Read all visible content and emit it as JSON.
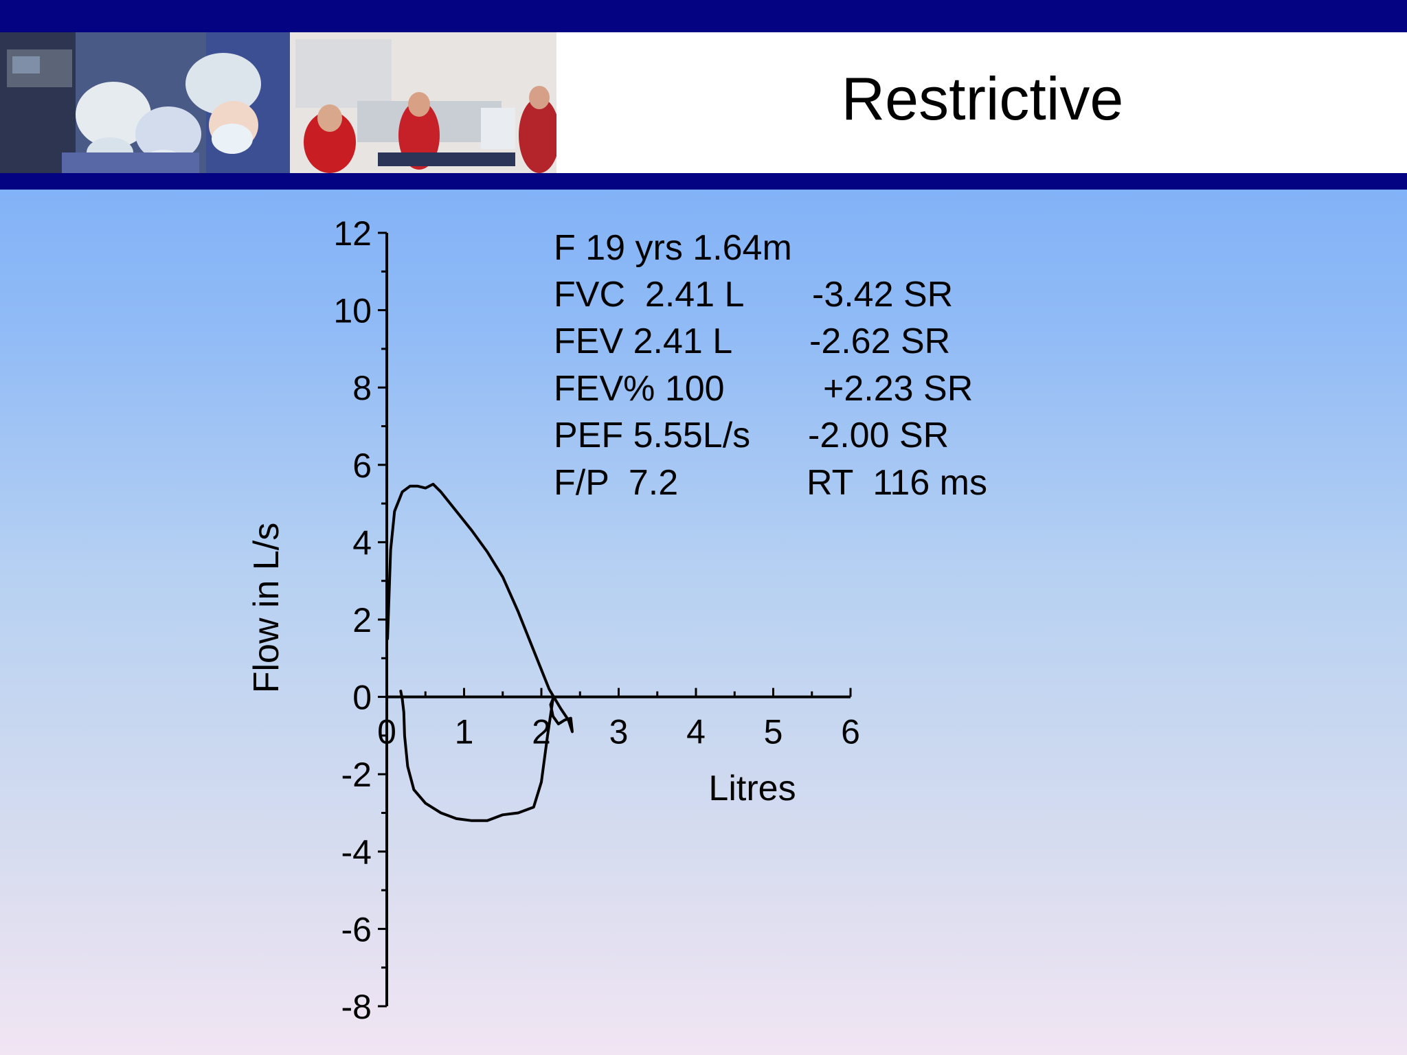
{
  "slide": {
    "title": "Restrictive"
  },
  "header_images": [
    {
      "icon": "surgeons-photo"
    },
    {
      "icon": "emergency-stretcher-photo"
    }
  ],
  "colors": {
    "bar": "#040482",
    "curve": "#000000"
  },
  "info": {
    "patient": "F 19 yrs 1.64m",
    "rows": [
      {
        "label": "FVC  2.41 L",
        "value": "-3.42 SR"
      },
      {
        "label": "FEV 2.41 L",
        "value": "-2.62 SR"
      },
      {
        "label": "FEV% 100",
        "value": "+2.23 SR"
      },
      {
        "label": "PEF 5.55L/s",
        "value": "-2.00 SR"
      },
      {
        "label": "F/P  7.2",
        "value": "RT  116 ms"
      }
    ]
  },
  "chart_data": {
    "type": "line",
    "title": "",
    "xlabel": "Litres",
    "ylabel": "Flow in L/s",
    "xlim": [
      0,
      6
    ],
    "ylim": [
      -8,
      12
    ],
    "xticks": [
      "0",
      "1",
      "2",
      "3",
      "4",
      "5",
      "6"
    ],
    "yticks": [
      "12",
      "10",
      "8",
      "6",
      "4",
      "2",
      "0",
      "-2",
      "-4",
      "-6",
      "-8"
    ],
    "grid": false,
    "series": [
      {
        "name": "",
        "x": [
          0.01,
          0.05,
          0.1,
          0.2,
          0.3,
          0.4,
          0.5,
          0.6,
          0.7,
          0.9,
          1.1,
          1.3,
          1.5,
          1.7,
          1.9,
          2.1,
          2.25,
          2.35,
          2.4,
          2.38,
          2.3,
          2.22,
          2.15,
          2.12,
          2.15,
          2.08,
          2.0,
          1.9,
          1.7,
          1.5,
          1.3,
          1.1,
          0.9,
          0.7,
          0.5,
          0.35,
          0.27,
          0.23,
          0.22,
          0.2,
          0.18
        ],
        "y": [
          1.5,
          3.8,
          4.8,
          5.3,
          5.45,
          5.45,
          5.4,
          5.5,
          5.3,
          4.8,
          4.3,
          3.75,
          3.1,
          2.2,
          1.2,
          0.2,
          -0.3,
          -0.6,
          -0.9,
          -0.55,
          -0.6,
          -0.7,
          -0.5,
          -0.2,
          -0.05,
          -1.0,
          -2.2,
          -2.85,
          -3.0,
          -3.05,
          -3.2,
          -3.2,
          -3.15,
          -3.0,
          -2.75,
          -2.4,
          -1.8,
          -1.0,
          -0.4,
          -0.05,
          0.15
        ]
      }
    ]
  }
}
